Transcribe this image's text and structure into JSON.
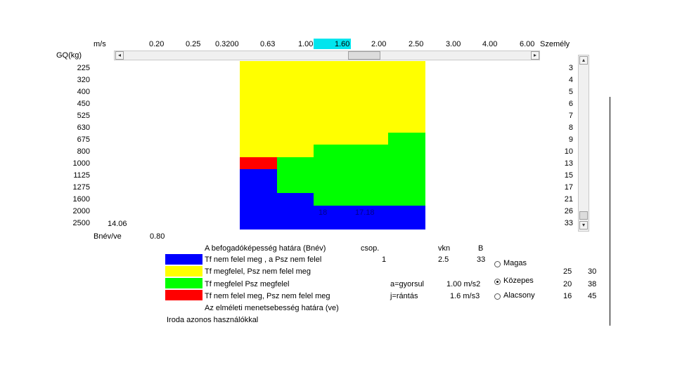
{
  "header": {
    "unit_label": "m/s",
    "speeds": [
      "0.20",
      "0.25",
      "0.3200",
      "0.63",
      "1.00",
      "1.60",
      "2.00",
      "2.50",
      "3.00",
      "4.00",
      "6.00"
    ],
    "selected_speed": "1.60",
    "persons_label": "Személy",
    "load_label": "GQ(kg)"
  },
  "rows": [
    {
      "load": "225",
      "persons": "3"
    },
    {
      "load": "320",
      "persons": "4"
    },
    {
      "load": "400",
      "persons": "5"
    },
    {
      "load": "450",
      "persons": "6"
    },
    {
      "load": "525",
      "persons": "7"
    },
    {
      "load": "630",
      "persons": "8"
    },
    {
      "load": "675",
      "persons": "9"
    },
    {
      "load": "800",
      "persons": "10"
    },
    {
      "load": "1000",
      "persons": "13"
    },
    {
      "load": "1125",
      "persons": "15"
    },
    {
      "load": "1275",
      "persons": "17"
    },
    {
      "load": "1600",
      "persons": "21"
    },
    {
      "load": "2000",
      "persons": "26"
    },
    {
      "load": "2500",
      "persons": "33"
    }
  ],
  "grid_labels": {
    "a": "14.06",
    "b": "18",
    "c": "17.18"
  },
  "bnev": {
    "label": "Bnév/ve",
    "value": "0.80"
  },
  "legend": {
    "capacity_title": "A befogadóképesség határa (Bnév)",
    "blue": "Tf nem felel meg , a Psz nem felel",
    "yellow": "Tf megfelel, Psz nem felel meg",
    "green": "Tf megfelel Psz megfelel",
    "red": "Tf nem felel meg, Psz nem felel meg",
    "theoretical": "Az elméleti menetsebesség határa (ve)",
    "footer": "Iroda azonos használókkal"
  },
  "info": {
    "csop_label": "csop.",
    "csop_value": "1",
    "vkn_label": "vkn",
    "vkn_value": "2.5",
    "b_label": "B",
    "b_value": "33",
    "acc_label": "a=gyorsul",
    "acc_value": "1.00 m/s2",
    "jerk_label": "j=rántás",
    "jerk_value": "1.6 m/s3"
  },
  "options": [
    {
      "label": "Magas",
      "selected": false,
      "v1": "25",
      "v2": "30"
    },
    {
      "label": "Közepes",
      "selected": true,
      "v1": "20",
      "v2": "38"
    },
    {
      "label": "Alacsony",
      "selected": false,
      "v1": "16",
      "v2": "45"
    }
  ],
  "colors": {
    "blue": "#0000ff",
    "yellow": "#ffff00",
    "green": "#00ff00",
    "red": "#ff0000",
    "selected_speed_bg": "#00e5ee"
  }
}
